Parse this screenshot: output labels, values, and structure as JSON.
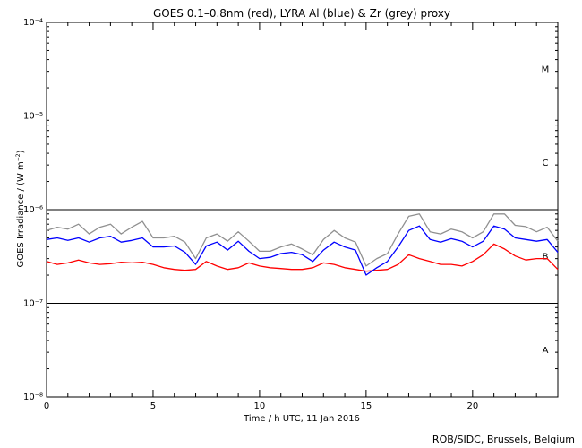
{
  "chart_data": {
    "type": "line",
    "title": "GOES 0.1–0.8nm (red), LYRA Al (blue) & Zr (grey) proxy",
    "xlabel": "Time / h UTC, 11 Jan 2016",
    "ylabel": "GOES Irradiance / (W m⁻²)",
    "xlim": [
      0,
      24
    ],
    "ylim": [
      1e-08,
      0.0001
    ],
    "yscale": "log",
    "grid": false,
    "x_ticks": [
      0,
      5,
      10,
      15,
      20
    ],
    "x_tick_labels": [
      "0",
      "5",
      "10",
      "15",
      "20"
    ],
    "y_tick_labels": [
      {
        "value": 1e-08,
        "label": "10⁻⁸"
      },
      {
        "value": 1e-07,
        "label": "10⁻⁷"
      },
      {
        "value": 1e-06,
        "label": "10⁻⁶"
      },
      {
        "value": 1e-05,
        "label": "10⁻⁵"
      },
      {
        "value": 0.0001,
        "label": "10⁻⁴"
      }
    ],
    "flare_class_lines": [
      1e-07,
      1e-06,
      1e-05
    ],
    "flare_classes": [
      {
        "label": "A",
        "level": 3.2e-08
      },
      {
        "label": "B",
        "level": 3.2e-07
      },
      {
        "label": "C",
        "level": 3.2e-06
      },
      {
        "label": "M",
        "level": 3.2e-05
      }
    ],
    "series": [
      {
        "name": "GOES 0.1–0.8nm",
        "color": "#ff0000",
        "x": [
          0,
          0.5,
          1,
          1.5,
          2,
          2.5,
          3,
          3.5,
          4,
          4.5,
          5,
          5.5,
          6,
          6.5,
          7,
          7.5,
          8,
          8.5,
          9,
          9.5,
          10,
          10.5,
          11,
          11.5,
          12,
          12.5,
          13,
          13.5,
          14,
          14.5,
          15,
          15.5,
          16,
          16.5,
          17,
          17.5,
          18,
          18.5,
          19,
          19.5,
          20,
          20.5,
          21,
          21.5,
          22,
          22.5,
          23,
          23.5,
          24
        ],
        "y": [
          2.8e-07,
          2.6e-07,
          2.7e-07,
          2.9e-07,
          2.7e-07,
          2.6e-07,
          2.65e-07,
          2.75e-07,
          2.7e-07,
          2.75e-07,
          2.6e-07,
          2.4e-07,
          2.3e-07,
          2.25e-07,
          2.3e-07,
          2.8e-07,
          2.5e-07,
          2.3e-07,
          2.4e-07,
          2.7e-07,
          2.5e-07,
          2.4e-07,
          2.35e-07,
          2.3e-07,
          2.3e-07,
          2.4e-07,
          2.7e-07,
          2.6e-07,
          2.4e-07,
          2.3e-07,
          2.2e-07,
          2.25e-07,
          2.3e-07,
          2.6e-07,
          3.3e-07,
          3e-07,
          2.8e-07,
          2.6e-07,
          2.6e-07,
          2.5e-07,
          2.8e-07,
          3.3e-07,
          4.3e-07,
          3.8e-07,
          3.2e-07,
          2.9e-07,
          3e-07,
          3e-07,
          2.3e-07
        ]
      },
      {
        "name": "LYRA Al",
        "color": "#0000ff",
        "x": [
          0,
          0.5,
          1,
          1.5,
          2,
          2.5,
          3,
          3.5,
          4,
          4.5,
          5,
          5.5,
          6,
          6.5,
          7,
          7.5,
          8,
          8.5,
          9,
          9.5,
          10,
          10.5,
          11,
          11.5,
          12,
          12.5,
          13,
          13.5,
          14,
          14.5,
          15,
          15.5,
          16,
          16.5,
          17,
          17.5,
          18,
          18.5,
          19,
          19.5,
          20,
          20.5,
          21,
          21.5,
          22,
          22.5,
          23,
          23.5,
          24
        ],
        "y": [
          4.8e-07,
          5e-07,
          4.7e-07,
          5e-07,
          4.5e-07,
          5e-07,
          5.2e-07,
          4.5e-07,
          4.7e-07,
          5e-07,
          4e-07,
          4e-07,
          4.1e-07,
          3.5e-07,
          2.6e-07,
          4.1e-07,
          4.5e-07,
          3.7e-07,
          4.6e-07,
          3.6e-07,
          3e-07,
          3.1e-07,
          3.4e-07,
          3.5e-07,
          3.3e-07,
          2.8e-07,
          3.7e-07,
          4.5e-07,
          4e-07,
          3.7e-07,
          2e-07,
          2.4e-07,
          2.8e-07,
          4e-07,
          6e-07,
          6.7e-07,
          4.8e-07,
          4.5e-07,
          4.9e-07,
          4.6e-07,
          4e-07,
          4.6e-07,
          6.7e-07,
          6.2e-07,
          5e-07,
          4.8e-07,
          4.6e-07,
          4.8e-07,
          3.5e-07
        ]
      },
      {
        "name": "LYRA Zr",
        "color": "#909090",
        "x": [
          0,
          0.5,
          1,
          1.5,
          2,
          2.5,
          3,
          3.5,
          4,
          4.5,
          5,
          5.5,
          6,
          6.5,
          7,
          7.5,
          8,
          8.5,
          9,
          9.5,
          10,
          10.5,
          11,
          11.5,
          12,
          12.5,
          13,
          13.5,
          14,
          14.5,
          15,
          15.5,
          16,
          16.5,
          17,
          17.5,
          18,
          18.5,
          19,
          19.5,
          20,
          20.5,
          21,
          21.5,
          22,
          22.5,
          23,
          23.5,
          24
        ],
        "y": [
          6e-07,
          6.5e-07,
          6.2e-07,
          7e-07,
          5.5e-07,
          6.5e-07,
          7e-07,
          5.5e-07,
          6.5e-07,
          7.5e-07,
          5e-07,
          5e-07,
          5.2e-07,
          4.5e-07,
          3e-07,
          5e-07,
          5.5e-07,
          4.6e-07,
          5.8e-07,
          4.6e-07,
          3.6e-07,
          3.6e-07,
          4e-07,
          4.3e-07,
          3.8e-07,
          3.3e-07,
          4.8e-07,
          6e-07,
          5e-07,
          4.5e-07,
          2.5e-07,
          3e-07,
          3.4e-07,
          5.5e-07,
          8.5e-07,
          9e-07,
          5.8e-07,
          5.5e-07,
          6.2e-07,
          5.8e-07,
          5e-07,
          5.8e-07,
          9e-07,
          9e-07,
          6.8e-07,
          6.6e-07,
          5.8e-07,
          6.5e-07,
          4.6e-07
        ]
      }
    ]
  },
  "credit": "ROB/SIDC, Brussels, Belgium"
}
